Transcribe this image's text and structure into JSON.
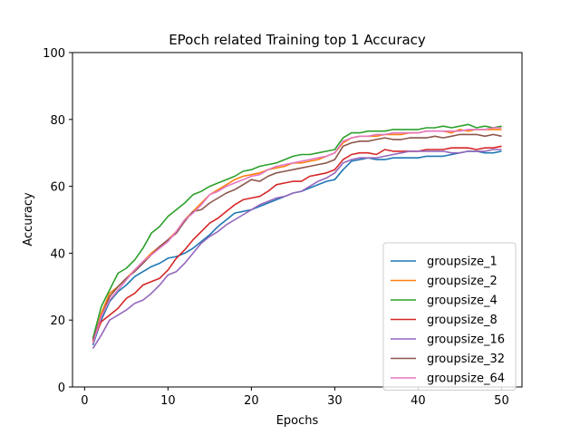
{
  "chart_data": {
    "type": "line",
    "title": "EPoch related Training top 1 Accuracy",
    "xlabel": "Epochs",
    "ylabel": "Accuracy",
    "xlim": [
      -1.45,
      52.45
    ],
    "ylim": [
      0,
      100
    ],
    "xticks": [
      0,
      10,
      20,
      30,
      40,
      50
    ],
    "yticks": [
      0,
      20,
      40,
      60,
      80,
      100
    ],
    "grid": false,
    "legend_position": "lower-right",
    "x": [
      1,
      2,
      3,
      4,
      5,
      6,
      7,
      8,
      9,
      10,
      11,
      12,
      13,
      14,
      15,
      16,
      17,
      18,
      19,
      20,
      21,
      22,
      23,
      24,
      25,
      26,
      27,
      28,
      29,
      30,
      31,
      32,
      33,
      34,
      35,
      36,
      37,
      38,
      39,
      40,
      41,
      42,
      43,
      44,
      45,
      46,
      47,
      48,
      49,
      50
    ],
    "series": [
      {
        "name": "groupsize_1",
        "color": "#1f77b4",
        "values": [
          12.5,
          20.0,
          25.5,
          28.5,
          30.5,
          33.0,
          34.5,
          36.0,
          37.0,
          38.5,
          39.0,
          40.0,
          41.5,
          43.5,
          45.5,
          48.0,
          50.0,
          52.0,
          52.5,
          53.0,
          54.0,
          55.0,
          56.0,
          57.0,
          58.0,
          58.5,
          59.5,
          60.5,
          61.5,
          62.0,
          65.0,
          67.5,
          68.0,
          68.5,
          68.0,
          68.0,
          68.5,
          68.5,
          68.5,
          68.5,
          69.0,
          69.0,
          69.0,
          69.5,
          70.0,
          70.5,
          70.5,
          70.0,
          70.0,
          70.5
        ]
      },
      {
        "name": "groupsize_2",
        "color": "#ff7f0e",
        "values": [
          13.5,
          22.0,
          28.0,
          30.0,
          32.5,
          35.0,
          37.5,
          40.0,
          42.0,
          44.0,
          46.5,
          50.0,
          52.5,
          55.0,
          57.5,
          59.0,
          60.5,
          62.0,
          63.0,
          63.5,
          64.0,
          65.0,
          65.5,
          66.0,
          67.0,
          67.0,
          67.5,
          68.0,
          69.0,
          70.0,
          73.0,
          74.5,
          75.0,
          75.0,
          75.0,
          75.5,
          75.5,
          75.5,
          76.0,
          76.0,
          76.5,
          76.5,
          76.5,
          76.0,
          77.0,
          76.5,
          77.0,
          77.0,
          77.0,
          77.0
        ]
      },
      {
        "name": "groupsize_4",
        "color": "#2ca02c",
        "values": [
          14.5,
          24.0,
          29.0,
          34.0,
          35.5,
          38.0,
          41.5,
          46.0,
          48.0,
          51.0,
          53.0,
          55.0,
          57.5,
          58.5,
          60.0,
          61.0,
          62.0,
          63.0,
          64.5,
          65.0,
          66.0,
          66.5,
          67.0,
          68.0,
          69.0,
          69.5,
          69.5,
          70.0,
          70.5,
          71.0,
          74.5,
          76.0,
          76.0,
          76.5,
          76.5,
          76.5,
          77.0,
          77.0,
          77.0,
          77.0,
          77.5,
          77.5,
          78.0,
          77.5,
          78.0,
          78.5,
          77.5,
          78.0,
          77.5,
          78.0
        ]
      },
      {
        "name": "groupsize_8",
        "color": "#d62728",
        "values": [
          14.0,
          19.5,
          21.5,
          23.5,
          26.5,
          28.0,
          30.5,
          31.5,
          32.5,
          35.0,
          38.5,
          41.0,
          44.0,
          46.5,
          49.0,
          50.5,
          52.5,
          54.5,
          56.0,
          56.5,
          57.0,
          58.5,
          60.5,
          61.0,
          61.5,
          61.5,
          63.0,
          63.5,
          64.0,
          65.0,
          68.0,
          69.5,
          70.0,
          70.0,
          69.5,
          71.0,
          70.5,
          70.5,
          70.5,
          70.5,
          71.0,
          71.0,
          71.0,
          71.5,
          71.5,
          71.5,
          71.0,
          71.5,
          71.5,
          72.0
        ]
      },
      {
        "name": "groupsize_16",
        "color": "#9467bd",
        "values": [
          11.5,
          15.5,
          20.0,
          21.5,
          23.0,
          25.0,
          26.0,
          28.0,
          30.5,
          33.5,
          34.5,
          37.0,
          40.0,
          43.0,
          45.0,
          46.5,
          48.5,
          50.0,
          51.5,
          53.0,
          54.5,
          55.5,
          56.5,
          57.0,
          58.0,
          58.5,
          60.0,
          61.5,
          62.5,
          64.0,
          67.0,
          68.0,
          68.5,
          68.5,
          68.5,
          69.0,
          69.5,
          70.0,
          70.5,
          70.5,
          70.5,
          70.5,
          70.5,
          70.0,
          70.0,
          70.5,
          70.5,
          70.5,
          71.0,
          71.0
        ]
      },
      {
        "name": "groupsize_32",
        "color": "#8c564b",
        "values": [
          14.0,
          21.0,
          27.0,
          30.0,
          32.5,
          34.5,
          37.0,
          39.5,
          42.0,
          44.0,
          46.0,
          49.5,
          52.5,
          53.0,
          55.0,
          56.5,
          58.0,
          59.0,
          60.5,
          62.0,
          61.5,
          63.0,
          64.0,
          64.5,
          65.0,
          65.5,
          66.0,
          66.5,
          67.0,
          68.0,
          72.0,
          73.0,
          73.5,
          73.5,
          74.0,
          74.5,
          74.0,
          74.0,
          74.5,
          74.5,
          74.5,
          75.0,
          74.5,
          75.0,
          75.5,
          75.5,
          75.5,
          75.0,
          75.5,
          75.0
        ]
      },
      {
        "name": "groupsize_64",
        "color": "#e377c2",
        "values": [
          13.0,
          21.0,
          26.0,
          29.0,
          32.0,
          35.0,
          37.5,
          39.5,
          41.5,
          43.5,
          46.5,
          50.0,
          52.0,
          54.5,
          57.5,
          58.5,
          60.0,
          61.0,
          62.0,
          63.0,
          63.5,
          65.0,
          66.0,
          66.5,
          67.0,
          67.5,
          68.0,
          68.5,
          69.0,
          70.0,
          73.5,
          74.5,
          75.0,
          75.0,
          75.5,
          75.5,
          76.0,
          76.0,
          76.0,
          76.0,
          76.5,
          76.5,
          76.5,
          76.5,
          76.5,
          77.0,
          77.0,
          77.0,
          77.5,
          77.5
        ]
      }
    ]
  }
}
